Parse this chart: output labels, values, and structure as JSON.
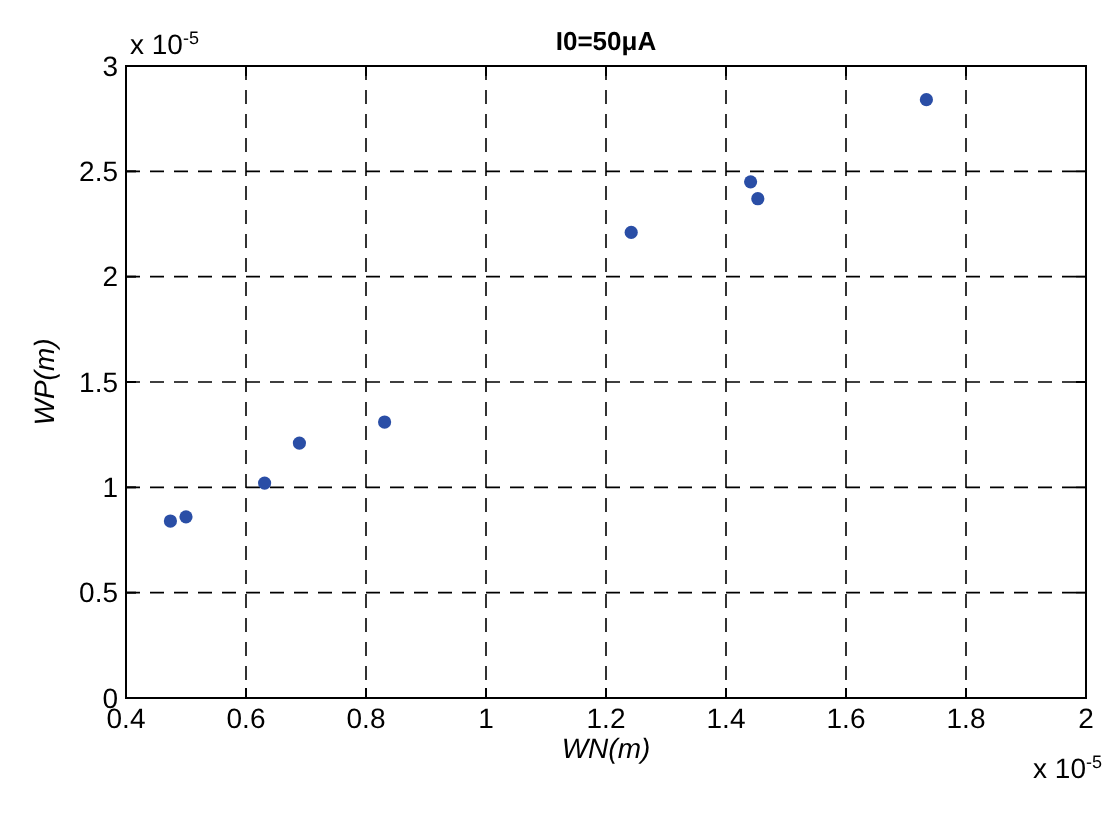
{
  "chart_data": {
    "type": "scatter",
    "title": "I0=50μA",
    "xlabel": "WN(m)",
    "ylabel": "WP(m)",
    "x": [
      0.474,
      0.5,
      0.631,
      0.689,
      0.831,
      1.242,
      1.441,
      1.453,
      1.734
    ],
    "series": [
      {
        "color": "#2a4ea6",
        "values": [
          0.84,
          0.86,
          1.02,
          1.21,
          1.31,
          2.21,
          2.45,
          2.37,
          2.84
        ]
      }
    ],
    "xlim": [
      0.4,
      2
    ],
    "xticks": [
      0.4,
      0.6,
      0.8,
      1,
      1.2,
      1.4,
      1.6,
      1.8,
      2
    ],
    "ylim": [
      0,
      3
    ],
    "yticks": [
      0,
      0.5,
      1,
      1.5,
      2,
      2.5,
      3
    ],
    "grid": true,
    "marker": "circle",
    "annotations": [
      "x 10$^{-5}$",
      "x 10$^{-5}$"
    ]
  }
}
